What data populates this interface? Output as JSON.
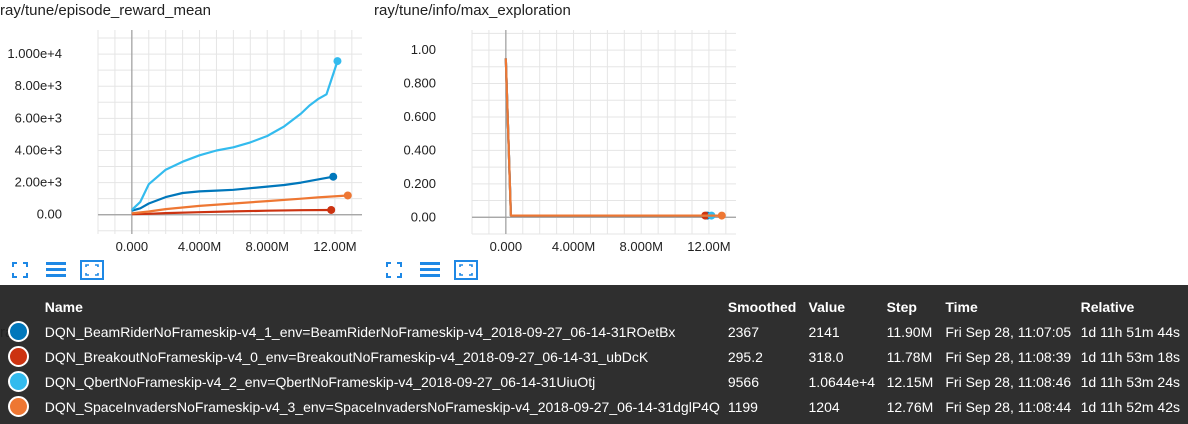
{
  "charts": [
    {
      "title": "ray/tune/episode_reward_mean",
      "yticks": [
        "0.00",
        "2.00e+3",
        "4.00e+3",
        "6.00e+3",
        "8.00e+3",
        "1.000e+4"
      ],
      "xticks": [
        "0.000",
        "4.000M",
        "8.000M",
        "12.00M"
      ]
    },
    {
      "title": "ray/tune/info/max_exploration",
      "yticks": [
        "0.00",
        "0.200",
        "0.400",
        "0.600",
        "0.800",
        "1.00"
      ],
      "xticks": [
        "0.000",
        "4.000M",
        "8.000M",
        "12.00M"
      ]
    }
  ],
  "chart_data": [
    {
      "type": "line",
      "title": "ray/tune/episode_reward_mean",
      "xlim": [
        -2000000,
        13600000
      ],
      "ylim": [
        -1200,
        11500
      ],
      "grid": true,
      "series": [
        {
          "name": "DQN_BeamRiderNoFrameskip-v4_1_env=BeamRiderNoFrameskip-v4_2018-09-27_06-14-31ROetBx",
          "color": "#0077bb",
          "x": [
            0,
            500000,
            1000000,
            2000000,
            3000000,
            4000000,
            5000000,
            6000000,
            7000000,
            8000000,
            9000000,
            10000000,
            11000000,
            11900000
          ],
          "y": [
            250,
            400,
            700,
            1100,
            1350,
            1450,
            1500,
            1550,
            1650,
            1750,
            1850,
            2000,
            2200,
            2367
          ]
        },
        {
          "name": "DQN_BreakoutNoFrameskip-v4_0_env=BreakoutNoFrameskip-v4_2018-09-27_06-14-31_ubDcK",
          "color": "#cc3311",
          "x": [
            0,
            1000000,
            2000000,
            4000000,
            6000000,
            8000000,
            10000000,
            11780000
          ],
          "y": [
            30,
            60,
            100,
            160,
            210,
            250,
            280,
            295.2
          ]
        },
        {
          "name": "DQN_QbertNoFrameskip-v4_2_env=QbertNoFrameskip-v4_2018-09-27_06-14-31UiuOtj",
          "color": "#33bbee",
          "x": [
            0,
            500000,
            1000000,
            2000000,
            3000000,
            4000000,
            5000000,
            6000000,
            7000000,
            8000000,
            9000000,
            10000000,
            10500000,
            11000000,
            11500000,
            12150000
          ],
          "y": [
            300,
            800,
            1900,
            2800,
            3300,
            3700,
            4000,
            4200,
            4500,
            4900,
            5500,
            6300,
            6800,
            7200,
            7500,
            9566
          ]
        },
        {
          "name": "DQN_SpaceInvadersNoFrameskip-v4_3_env=SpaceInvadersNoFrameskip-v4_2018-09-27_06-14-31dglP4Q",
          "color": "#ee7733",
          "x": [
            0,
            1000000,
            2000000,
            4000000,
            6000000,
            8000000,
            10000000,
            11000000,
            12760000
          ],
          "y": [
            80,
            200,
            350,
            550,
            700,
            850,
            1000,
            1080,
            1199
          ]
        }
      ]
    },
    {
      "type": "line",
      "title": "ray/tune/info/max_exploration",
      "xlim": [
        -2000000,
        13600000
      ],
      "ylim": [
        -0.1,
        1.12
      ],
      "grid": true,
      "series": [
        {
          "name": "DQN_BeamRiderNoFrameskip-v4_1_env=BeamRiderNoFrameskip-v4_2018-09-27_06-14-31ROetBx",
          "color": "#0077bb",
          "x": [
            0,
            300000,
            11900000
          ],
          "y": [
            0.95,
            0.01,
            0.01
          ]
        },
        {
          "name": "DQN_BreakoutNoFrameskip-v4_0_env=BreakoutNoFrameskip-v4_2018-09-27_06-14-31_ubDcK",
          "color": "#cc3311",
          "x": [
            0,
            300000,
            11780000
          ],
          "y": [
            0.95,
            0.01,
            0.01
          ]
        },
        {
          "name": "DQN_QbertNoFrameskip-v4_2_env=QbertNoFrameskip-v4_2018-09-27_06-14-31UiuOtj",
          "color": "#33bbee",
          "x": [
            0,
            300000,
            12150000
          ],
          "y": [
            0.95,
            0.01,
            0.01
          ]
        },
        {
          "name": "DQN_SpaceInvadersNoFrameskip-v4_3_env=SpaceInvadersNoFrameskip-v4_2018-09-27_06-14-31dglP4Q",
          "color": "#ee7733",
          "x": [
            0,
            300000,
            12760000
          ],
          "y": [
            0.95,
            0.01,
            0.01
          ]
        }
      ]
    }
  ],
  "tooltip": {
    "headers": [
      "Name",
      "Smoothed",
      "Value",
      "Step",
      "Time",
      "Relative"
    ],
    "rows": [
      {
        "color": "#0077bb",
        "name": "DQN_BeamRiderNoFrameskip-v4_1_env=BeamRiderNoFrameskip-v4_2018-09-27_06-14-31ROetBx",
        "smoothed": "2367",
        "value": "2141",
        "step": "11.90M",
        "time": "Fri Sep 28, 11:07:05",
        "relative": "1d 11h 51m 44s"
      },
      {
        "color": "#cc3311",
        "name": "DQN_BreakoutNoFrameskip-v4_0_env=BreakoutNoFrameskip-v4_2018-09-27_06-14-31_ubDcK",
        "smoothed": "295.2",
        "value": "318.0",
        "step": "11.78M",
        "time": "Fri Sep 28, 11:08:39",
        "relative": "1d 11h 53m 18s"
      },
      {
        "color": "#33bbee",
        "name": "DQN_QbertNoFrameskip-v4_2_env=QbertNoFrameskip-v4_2018-09-27_06-14-31UiuOtj",
        "smoothed": "9566",
        "value": "1.0644e+4",
        "step": "12.15M",
        "time": "Fri Sep 28, 11:08:46",
        "relative": "1d 11h 53m 24s"
      },
      {
        "color": "#ee7733",
        "name": "DQN_SpaceInvadersNoFrameskip-v4_3_env=SpaceInvadersNoFrameskip-v4_2018-09-27_06-14-31dglP4Q",
        "smoothed": "1199",
        "value": "1204",
        "step": "12.76M",
        "time": "Fri Sep 28, 11:08:44",
        "relative": "1d 11h 52m 42s"
      }
    ]
  },
  "background_label": "ray"
}
